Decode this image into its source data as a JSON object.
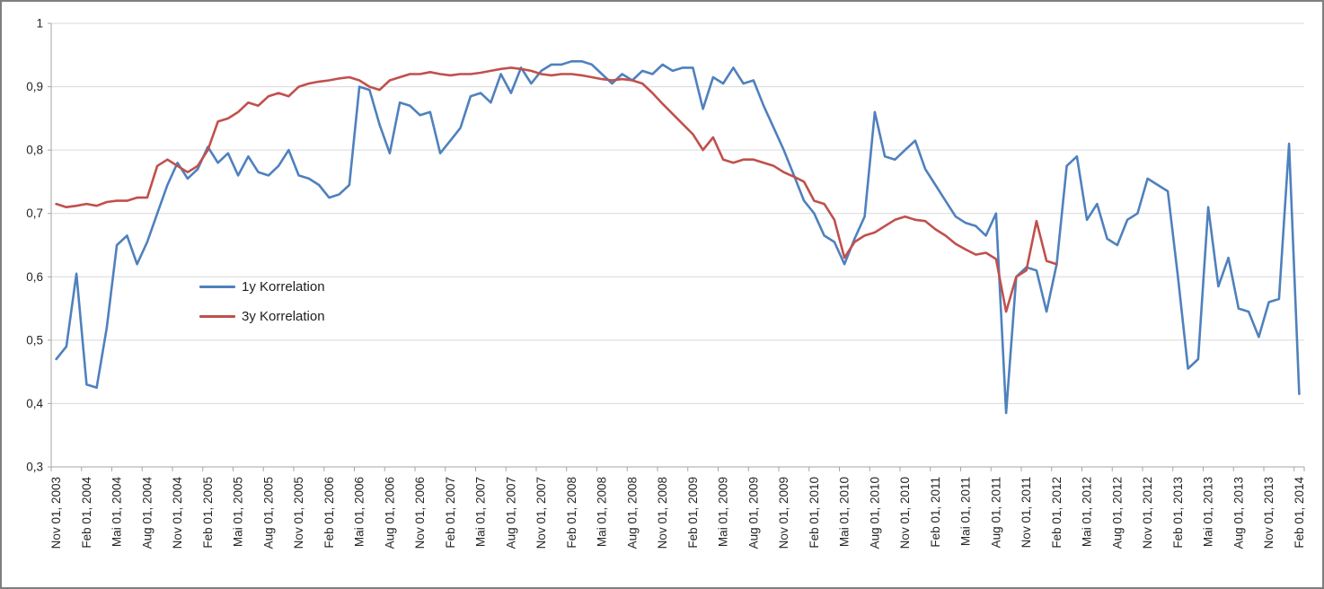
{
  "chart_data": {
    "type": "line",
    "n_points": 124,
    "x_tick_step": 3,
    "x_tick_labels": [
      "Nov 01, 2003",
      "Feb 01, 2004",
      "Mai 01, 2004",
      "Aug 01, 2004",
      "Nov 01, 2004",
      "Feb 01, 2005",
      "Mai 01, 2005",
      "Aug 01, 2005",
      "Nov 01, 2005",
      "Feb 01, 2006",
      "Mai 01, 2006",
      "Aug 01, 2006",
      "Nov 01, 2006",
      "Feb 01, 2007",
      "Mai 01, 2007",
      "Aug 01, 2007",
      "Nov 01, 2007",
      "Feb 01, 2008",
      "Mai 01, 2008",
      "Aug 01, 2008",
      "Nov 01, 2008",
      "Feb 01, 2009",
      "Mai 01, 2009",
      "Aug 01, 2009",
      "Nov 01, 2009",
      "Feb 01, 2010",
      "Mai 01, 2010",
      "Aug 01, 2010",
      "Nov 01, 2010",
      "Feb 01, 2011",
      "Mai 01, 2011",
      "Aug 01, 2011",
      "Nov 01, 2011",
      "Feb 01, 2012",
      "Mai 01, 2012",
      "Aug 01, 2012",
      "Nov 01, 2012",
      "Feb 01, 2013",
      "Mai 01, 2013",
      "Aug 01, 2013",
      "Nov 01, 2013",
      "Feb 01, 2014"
    ],
    "y_axis": {
      "min": 0.3,
      "max": 1.0,
      "step": 0.1,
      "tick_labels": [
        "1",
        "0,9",
        "0,8",
        "0,7",
        "0,6",
        "0,5",
        "0,4",
        "0,3"
      ]
    },
    "grid": "horizontal",
    "legend": {
      "position": "inside-left"
    },
    "series": [
      {
        "name": "1y Korrelation",
        "color": "#4F81BD",
        "values": [
          0.47,
          0.49,
          0.605,
          0.43,
          0.425,
          0.52,
          0.65,
          0.665,
          0.62,
          0.655,
          0.7,
          0.745,
          0.78,
          0.755,
          0.77,
          0.805,
          0.78,
          0.795,
          0.76,
          0.79,
          0.765,
          0.76,
          0.775,
          0.8,
          0.76,
          0.755,
          0.745,
          0.725,
          0.73,
          0.745,
          0.9,
          0.895,
          0.84,
          0.795,
          0.875,
          0.87,
          0.855,
          0.86,
          0.795,
          0.815,
          0.835,
          0.885,
          0.89,
          0.875,
          0.92,
          0.89,
          0.93,
          0.905,
          0.925,
          0.935,
          0.935,
          0.94,
          0.94,
          0.935,
          0.92,
          0.905,
          0.92,
          0.91,
          0.925,
          0.92,
          0.935,
          0.925,
          0.93,
          0.93,
          0.865,
          0.915,
          0.905,
          0.93,
          0.905,
          0.91,
          0.87,
          0.835,
          0.8,
          0.76,
          0.72,
          0.7,
          0.665,
          0.655,
          0.62,
          0.66,
          0.695,
          0.86,
          0.79,
          0.785,
          0.8,
          0.815,
          0.77,
          0.745,
          0.72,
          0.695,
          0.685,
          0.68,
          0.665,
          0.7,
          0.385,
          0.6,
          0.615,
          0.61,
          0.545,
          0.62,
          0.775,
          0.79,
          0.69,
          0.715,
          0.66,
          0.65,
          0.69,
          0.7,
          0.755,
          0.745,
          0.735,
          0.6,
          0.455,
          0.47,
          0.71,
          0.585,
          0.63,
          0.55,
          0.545,
          0.505,
          0.56,
          0.565,
          0.81,
          0.415
        ]
      },
      {
        "name": "3y Korrelation",
        "color": "#C0504D",
        "values": [
          0.715,
          0.71,
          0.712,
          0.715,
          0.712,
          0.718,
          0.72,
          0.72,
          0.725,
          0.725,
          0.775,
          0.785,
          0.775,
          0.765,
          0.775,
          0.8,
          0.845,
          0.85,
          0.86,
          0.875,
          0.87,
          0.885,
          0.89,
          0.885,
          0.9,
          0.905,
          0.908,
          0.91,
          0.913,
          0.915,
          0.91,
          0.9,
          0.895,
          0.91,
          0.915,
          0.92,
          0.92,
          0.923,
          0.92,
          0.918,
          0.92,
          0.92,
          0.922,
          0.925,
          0.928,
          0.93,
          0.928,
          0.925,
          0.92,
          0.918,
          0.92,
          0.92,
          0.918,
          0.915,
          0.912,
          0.91,
          0.912,
          0.91,
          0.905,
          0.89,
          0.873,
          0.857,
          0.841,
          0.825,
          0.8,
          0.82,
          0.785,
          0.78,
          0.785,
          0.785,
          0.78,
          0.775,
          0.765,
          0.758,
          0.75,
          0.72,
          0.715,
          0.69,
          0.63,
          0.655,
          0.665,
          0.67,
          0.68,
          0.69,
          0.695,
          0.69,
          0.688,
          0.675,
          0.665,
          0.652,
          0.643,
          0.635,
          0.638,
          0.628,
          0.545,
          0.6,
          0.61,
          0.688,
          0.625,
          0.62,
          null,
          null,
          null,
          null,
          null,
          null,
          null,
          null,
          null,
          null,
          null,
          null,
          null,
          null,
          null,
          null,
          null,
          null,
          null,
          null,
          null,
          null,
          null,
          null
        ]
      }
    ],
    "colors": {
      "gridline": "#D9D9D9",
      "axis": "#A6A6A6",
      "tick_text": "#262626",
      "background": "#FFFFFF",
      "frame": "#7F7F7F"
    }
  }
}
